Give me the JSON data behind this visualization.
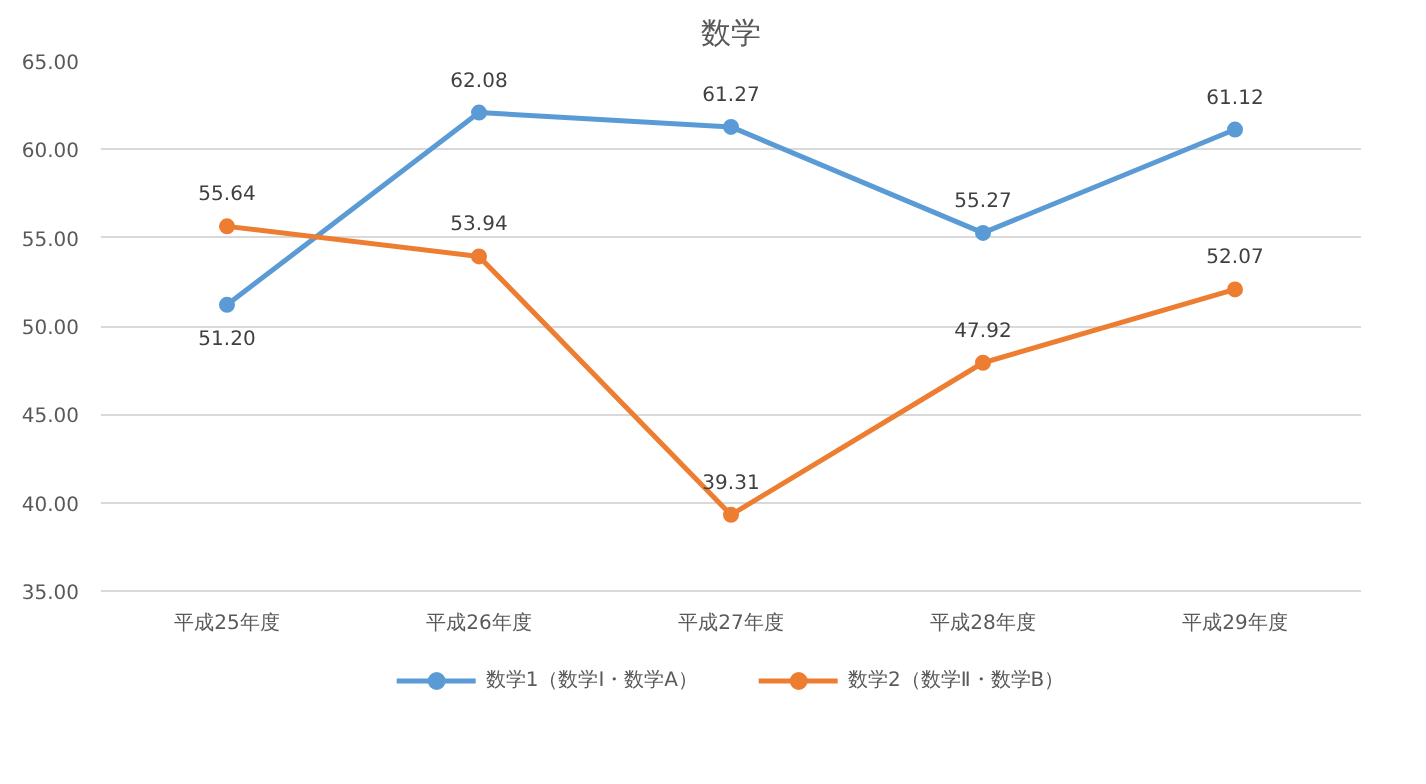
{
  "chart_data": {
    "type": "line",
    "title": "数学",
    "categories": [
      "平成25年度",
      "平成26年度",
      "平成27年度",
      "平成28年度",
      "平成29年度"
    ],
    "series": [
      {
        "name": "数学1（数学Ⅰ・数学A）",
        "color": "#5b9bd5",
        "values": [
          51.2,
          62.08,
          61.27,
          55.27,
          61.12
        ],
        "value_labels": [
          "51.20",
          "62.08",
          "61.27",
          "55.27",
          "61.12"
        ]
      },
      {
        "name": "数学2（数学Ⅱ・数学B）",
        "color": "#ed7d31",
        "values": [
          55.64,
          53.94,
          39.31,
          47.92,
          52.07
        ],
        "value_labels": [
          "55.64",
          "53.94",
          "39.31",
          "47.92",
          "52.07"
        ]
      }
    ],
    "ylim": [
      35,
      65
    ],
    "yticks": [
      {
        "value": 35,
        "label": "35.00"
      },
      {
        "value": 40,
        "label": "40.00"
      },
      {
        "value": 45,
        "label": "45.00"
      },
      {
        "value": 50,
        "label": "50.00"
      },
      {
        "value": 55,
        "label": "55.00"
      },
      {
        "value": 60,
        "label": "60.00"
      },
      {
        "value": 65,
        "label": "65.00"
      }
    ],
    "grid": "y",
    "legend": "bottom",
    "marker": "circle",
    "line_style": "solid"
  }
}
